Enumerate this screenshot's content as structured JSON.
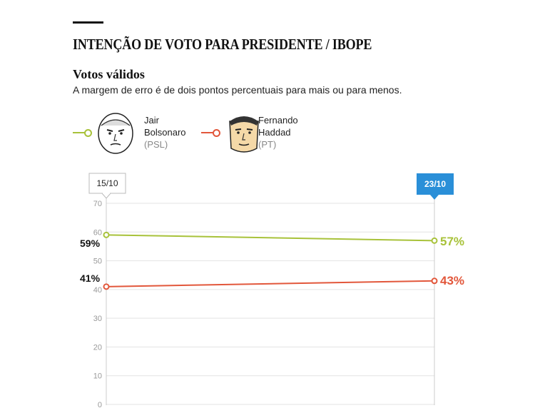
{
  "header": {
    "title": "INTENÇÃO DE VOTO PARA PRESIDENTE / IBOPE",
    "subtitle": "Votos válidos",
    "note": "A margem de erro é de dois pontos percentuais para mais ou para menos."
  },
  "legend": [
    {
      "name_line1": "Jair",
      "name_line2": "Bolsonaro",
      "party": "(PSL)",
      "color": "#a8c23a",
      "face_icon": "bolsonaro-face-icon"
    },
    {
      "name_line1": "Fernando",
      "name_line2": "Haddad",
      "party": "(PT)",
      "color": "#e2573b",
      "face_icon": "haddad-face-icon"
    }
  ],
  "date_tags": {
    "start": "15/10",
    "end": "23/10",
    "end_color": "#2a8fd8"
  },
  "start_labels": {
    "bolsonaro": "59%",
    "haddad": "41%"
  },
  "end_labels": {
    "bolsonaro": "57%",
    "haddad": "43%"
  },
  "chart_data": {
    "type": "line",
    "x": [
      "15/10",
      "23/10"
    ],
    "ylim": [
      0,
      70
    ],
    "yticks": [
      0,
      10,
      20,
      30,
      40,
      50,
      60,
      70
    ],
    "grid": true,
    "series": [
      {
        "name": "Jair Bolsonaro (PSL)",
        "color": "#a8c23a",
        "values": [
          59,
          57
        ]
      },
      {
        "name": "Fernando Haddad (PT)",
        "color": "#e2573b",
        "values": [
          41,
          43
        ]
      }
    ]
  }
}
